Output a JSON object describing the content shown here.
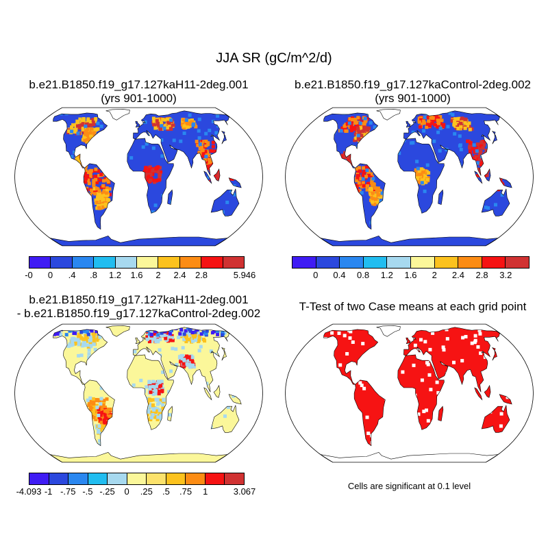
{
  "figure": {
    "title": "JJA SR (gC/m^2/d)",
    "note": "Cells are significant at 0.1 level"
  },
  "panels": {
    "p1": {
      "title_line1": "b.e21.B1850.f19_g17.127kaH11-2deg.001",
      "title_line2": "(yrs 901-1000)",
      "map_content": "mean JJA SR field, case 1"
    },
    "p2": {
      "title_line1": "b.e21.B1850.f19_g17.127kaControl-2deg.002",
      "title_line2": "(yrs 901-1000)",
      "map_content": "mean JJA SR field, case 2"
    },
    "p3": {
      "title_line1": "b.e21.B1850.f19_g17.127kaH11-2deg.001",
      "title_line2": "- b.e21.B1850.f19_g17.127kaControl-2deg.002",
      "map_content": "difference field"
    },
    "p4": {
      "title_line1": "T-Test of two Case means at each grid point",
      "map_content": "significance mask (red = significant)"
    }
  },
  "colorbars": {
    "cb1": {
      "colors": [
        "#3f1cf4",
        "#2b48de",
        "#2a87f0",
        "#21bdf0",
        "#a7d9ef",
        "#fbf79a",
        "#fcc21e",
        "#fc8c14",
        "#f61313",
        "#d03232"
      ],
      "labels": [
        "-0",
        "0",
        ".4",
        ".8",
        "1.2",
        "1.6",
        "2",
        "2.4",
        "2.8",
        "5.946"
      ]
    },
    "cb2": {
      "colors": [
        "#3f1cf4",
        "#2b48de",
        "#2a87f0",
        "#21bdf0",
        "#a7d9ef",
        "#fbf79a",
        "#fcc21e",
        "#fc8c14",
        "#f61313",
        "#d03232"
      ],
      "labels": [
        "0",
        "0.4",
        "0.8",
        "1.2",
        "1.6",
        "2",
        "2.4",
        "2.8",
        "3.2"
      ]
    },
    "cb3": {
      "colors": [
        "#3f1cf4",
        "#2b48de",
        "#2a87f0",
        "#21bdf0",
        "#a7d9ef",
        "#fbf79a",
        "#fce26c",
        "#fcc21e",
        "#fc8c14",
        "#f61313",
        "#d03232"
      ],
      "labels": [
        "-4.093",
        "-1",
        "-.75",
        "-.5",
        "-.25",
        "0",
        ".25",
        ".5",
        ".75",
        "1",
        "3.067"
      ]
    }
  }
}
